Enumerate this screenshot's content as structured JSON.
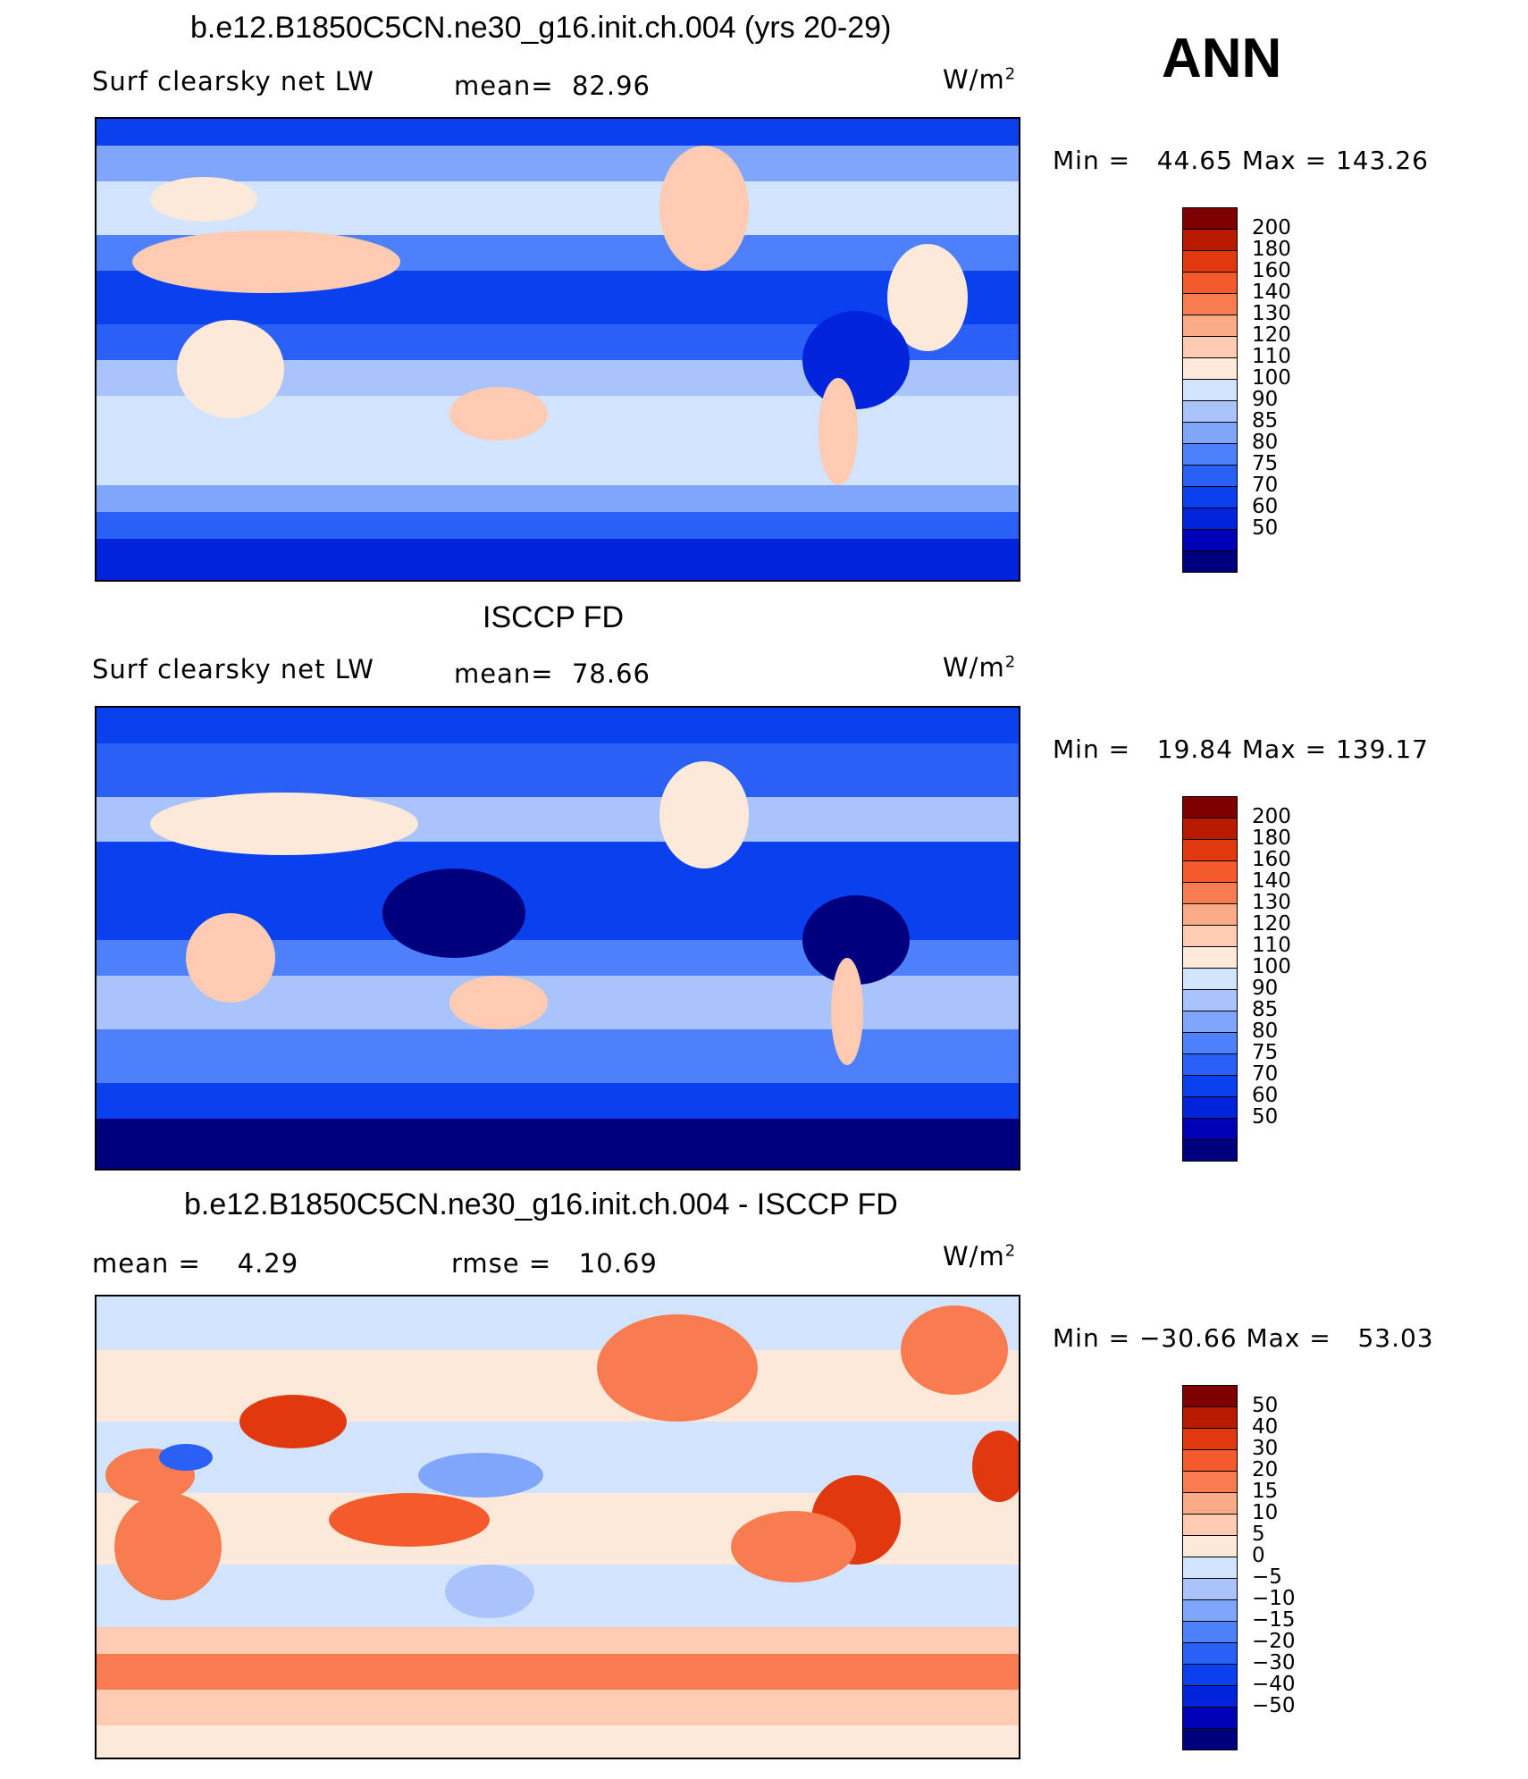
{
  "season": "ANN",
  "colors": {
    "abs_scale": [
      "#00007f",
      "#0000b7",
      "#0024dc",
      "#0a40ee",
      "#2a60f5",
      "#4d80fa",
      "#7fa6fb",
      "#a9c4fb",
      "#d2e4fd",
      "#fde9d9",
      "#fdcab2",
      "#fbaa88",
      "#f97c50",
      "#f55a2d",
      "#e0380f",
      "#b81a00",
      "#7f0000"
    ],
    "diff_scale": [
      "#00007f",
      "#0000b7",
      "#0024dc",
      "#0a40ee",
      "#2a60f5",
      "#4d80fa",
      "#7fa6fb",
      "#a9c4fb",
      "#d2e4fd",
      "#fde9d9",
      "#fdcab2",
      "#fbaa88",
      "#f97c50",
      "#f55a2d",
      "#e0380f",
      "#b81a00",
      "#7f0000"
    ]
  },
  "panels": [
    {
      "title": "b.e12.B1850C5CN.ne30_g16.init.ch.004 (yrs 20-29)",
      "left_label": "Surf clearsky net LW",
      "stat_label": "mean=",
      "stat_value": "82.96",
      "units": "W/m",
      "units_sup": "2",
      "min_label": "Min =",
      "min_value": "44.65",
      "max_label": "Max =",
      "max_value": "143.26",
      "colorbar_levels": [
        "200",
        "180",
        "160",
        "140",
        "130",
        "120",
        "110",
        "100",
        "90",
        "85",
        "80",
        "75",
        "70",
        "60",
        "50"
      ]
    },
    {
      "title": "ISCCP FD",
      "left_label": "Surf clearsky net LW",
      "stat_label": "mean=",
      "stat_value": "78.66",
      "units": "W/m",
      "units_sup": "2",
      "min_label": "Min =",
      "min_value": "19.84",
      "max_label": "Max =",
      "max_value": "139.17",
      "colorbar_levels": [
        "200",
        "180",
        "160",
        "140",
        "130",
        "120",
        "110",
        "100",
        "90",
        "85",
        "80",
        "75",
        "70",
        "60",
        "50"
      ]
    },
    {
      "title": "b.e12.B1850C5CN.ne30_g16.init.ch.004 - ISCCP FD",
      "left_label": "mean =",
      "left_value": "4.29",
      "stat_label": "rmse =",
      "stat_value": "10.69",
      "units": "W/m",
      "units_sup": "2",
      "min_label": "Min =",
      "min_value": "−30.66",
      "max_label": "Max =",
      "max_value": "53.03",
      "colorbar_levels": [
        "50",
        "40",
        "30",
        "20",
        "15",
        "10",
        "5",
        "0",
        "−5",
        "−10",
        "−15",
        "−20",
        "−30",
        "−40",
        "−50"
      ]
    }
  ],
  "chart_data": [
    {
      "type": "heatmap",
      "title": "b.e12.B1850C5CN.ne30_g16.init.ch.004 (yrs 20-29)",
      "variable": "Surf clearsky net LW",
      "units": "W/m2",
      "mean": 82.96,
      "min": 44.65,
      "max": 143.26,
      "contour_levels": [
        50,
        60,
        70,
        75,
        80,
        85,
        90,
        100,
        110,
        120,
        130,
        140,
        160,
        180,
        200
      ]
    },
    {
      "type": "heatmap",
      "title": "ISCCP FD",
      "variable": "Surf clearsky net LW",
      "units": "W/m2",
      "mean": 78.66,
      "min": 19.84,
      "max": 139.17,
      "contour_levels": [
        50,
        60,
        70,
        75,
        80,
        85,
        90,
        100,
        110,
        120,
        130,
        140,
        160,
        180,
        200
      ]
    },
    {
      "type": "heatmap",
      "title": "b.e12.B1850C5CN.ne30_g16.init.ch.004 - ISCCP FD",
      "units": "W/m2",
      "mean": 4.29,
      "rmse": 10.69,
      "min": -30.66,
      "max": 53.03,
      "contour_levels": [
        -50,
        -40,
        -30,
        -20,
        -15,
        -10,
        -5,
        0,
        5,
        10,
        15,
        20,
        30,
        40,
        50
      ]
    }
  ]
}
